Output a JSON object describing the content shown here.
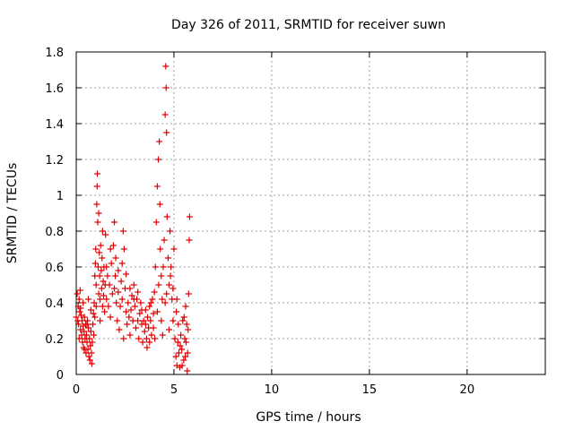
{
  "chart_data": {
    "type": "scatter",
    "title": "Day 326 of 2011, SRMTID for receiver suwn",
    "xlabel": "GPS time / hours",
    "ylabel": "SRMTID / TECUs",
    "xlim": [
      0,
      24
    ],
    "ylim": [
      0,
      1.8
    ],
    "xticks": [
      0,
      5,
      10,
      15,
      20
    ],
    "xtick_labels": [
      "0",
      "5",
      "10",
      "15",
      "20"
    ],
    "yticks": [
      0,
      0.2,
      0.4,
      0.6,
      0.8,
      1.0,
      1.2,
      1.4,
      1.6,
      1.8
    ],
    "ytick_labels": [
      "0",
      "0.2",
      "0.4",
      "0.6",
      "0.8",
      "1",
      "1.2",
      "1.4",
      "1.6",
      "1.8"
    ],
    "grid": true,
    "legend": "none",
    "marker": "plus",
    "color": "#e00000",
    "series": [
      {
        "name": "SRMTID",
        "points": [
          [
            0.0,
            0.32
          ],
          [
            0.05,
            0.45
          ],
          [
            0.08,
            0.3
          ],
          [
            0.1,
            0.38
          ],
          [
            0.12,
            0.28
          ],
          [
            0.15,
            0.42
          ],
          [
            0.18,
            0.35
          ],
          [
            0.2,
            0.47
          ],
          [
            0.22,
            0.25
          ],
          [
            0.25,
            0.33
          ],
          [
            0.28,
            0.22
          ],
          [
            0.3,
            0.3
          ],
          [
            0.32,
            0.18
          ],
          [
            0.35,
            0.27
          ],
          [
            0.38,
            0.15
          ],
          [
            0.4,
            0.24
          ],
          [
            0.42,
            0.32
          ],
          [
            0.45,
            0.2
          ],
          [
            0.48,
            0.28
          ],
          [
            0.5,
            0.12
          ],
          [
            0.52,
            0.22
          ],
          [
            0.55,
            0.18
          ],
          [
            0.58,
            0.3
          ],
          [
            0.6,
            0.14
          ],
          [
            0.62,
            0.26
          ],
          [
            0.65,
            0.1
          ],
          [
            0.68,
            0.2
          ],
          [
            0.7,
            0.08
          ],
          [
            0.72,
            0.16
          ],
          [
            0.75,
            0.24
          ],
          [
            0.78,
            0.12
          ],
          [
            0.8,
            0.06
          ],
          [
            0.82,
            0.18
          ],
          [
            0.85,
            0.28
          ],
          [
            0.88,
            0.34
          ],
          [
            0.9,
            0.22
          ],
          [
            0.92,
            0.4
          ],
          [
            0.95,
            0.55
          ],
          [
            0.98,
            0.62
          ],
          [
            1.0,
            0.7
          ],
          [
            1.02,
            0.5
          ],
          [
            1.05,
            0.95
          ],
          [
            1.07,
            1.05
          ],
          [
            1.08,
            1.12
          ],
          [
            1.1,
            0.85
          ],
          [
            1.12,
            0.6
          ],
          [
            1.15,
            0.45
          ],
          [
            1.18,
            0.68
          ],
          [
            1.2,
            0.55
          ],
          [
            1.22,
            0.42
          ],
          [
            1.25,
            0.72
          ],
          [
            1.28,
            0.58
          ],
          [
            1.3,
            0.48
          ],
          [
            1.32,
            0.65
          ],
          [
            1.35,
            0.38
          ],
          [
            1.38,
            0.52
          ],
          [
            1.4,
            0.44
          ],
          [
            1.42,
            0.6
          ],
          [
            1.45,
            0.35
          ],
          [
            1.48,
            0.5
          ],
          [
            1.5,
            0.78
          ],
          [
            1.55,
            0.42
          ],
          [
            1.6,
            0.55
          ],
          [
            1.65,
            0.38
          ],
          [
            1.7,
            0.5
          ],
          [
            1.75,
            0.32
          ],
          [
            1.8,
            0.62
          ],
          [
            1.85,
            0.45
          ],
          [
            1.9,
            0.72
          ],
          [
            1.95,
            0.85
          ],
          [
            2.0,
            0.55
          ],
          [
            2.05,
            0.4
          ],
          [
            2.1,
            0.3
          ],
          [
            2.15,
            0.46
          ],
          [
            2.2,
            0.25
          ],
          [
            2.25,
            0.38
          ],
          [
            2.3,
            0.52
          ],
          [
            2.35,
            0.62
          ],
          [
            2.4,
            0.8
          ],
          [
            2.45,
            0.7
          ],
          [
            2.5,
            0.48
          ],
          [
            2.55,
            0.35
          ],
          [
            2.6,
            0.28
          ],
          [
            2.65,
            0.4
          ],
          [
            2.7,
            0.32
          ],
          [
            2.75,
            0.22
          ],
          [
            2.8,
            0.36
          ],
          [
            2.85,
            0.44
          ],
          [
            2.9,
            0.3
          ],
          [
            2.95,
            0.5
          ],
          [
            3.0,
            0.38
          ],
          [
            3.05,
            0.26
          ],
          [
            3.1,
            0.42
          ],
          [
            3.15,
            0.3
          ],
          [
            3.2,
            0.2
          ],
          [
            3.25,
            0.34
          ],
          [
            3.3,
            0.4
          ],
          [
            3.35,
            0.28
          ],
          [
            3.4,
            0.18
          ],
          [
            3.45,
            0.3
          ],
          [
            3.5,
            0.24
          ],
          [
            3.55,
            0.36
          ],
          [
            3.6,
            0.2
          ],
          [
            3.65,
            0.32
          ],
          [
            3.7,
            0.26
          ],
          [
            3.75,
            0.38
          ],
          [
            3.8,
            0.3
          ],
          [
            3.85,
            0.22
          ],
          [
            3.9,
            0.42
          ],
          [
            3.95,
            0.34
          ],
          [
            4.0,
            0.46
          ],
          [
            4.05,
            0.6
          ],
          [
            4.1,
            0.85
          ],
          [
            4.15,
            1.05
          ],
          [
            4.2,
            1.2
          ],
          [
            4.25,
            1.3
          ],
          [
            4.28,
            0.95
          ],
          [
            4.3,
            0.7
          ],
          [
            4.35,
            0.55
          ],
          [
            4.4,
            0.42
          ],
          [
            4.45,
            0.6
          ],
          [
            4.5,
            0.75
          ],
          [
            4.55,
            1.45
          ],
          [
            4.58,
            1.72
          ],
          [
            4.6,
            1.6
          ],
          [
            4.62,
            1.35
          ],
          [
            4.65,
            0.88
          ],
          [
            4.7,
            0.65
          ],
          [
            4.75,
            0.5
          ],
          [
            4.8,
            0.8
          ],
          [
            4.85,
            0.6
          ],
          [
            4.9,
            0.42
          ],
          [
            4.95,
            0.3
          ],
          [
            5.0,
            0.7
          ],
          [
            5.05,
            0.2
          ],
          [
            5.1,
            0.1
          ],
          [
            5.15,
            0.05
          ],
          [
            5.2,
            0.18
          ],
          [
            5.25,
            0.12
          ],
          [
            5.3,
            0.04
          ],
          [
            5.35,
            0.22
          ],
          [
            5.4,
            0.14
          ],
          [
            5.45,
            0.3
          ],
          [
            5.5,
            0.08
          ],
          [
            5.55,
            0.2
          ],
          [
            5.6,
            0.38
          ],
          [
            5.65,
            0.28
          ],
          [
            5.7,
            0.12
          ],
          [
            5.75,
            0.45
          ],
          [
            5.8,
            0.88
          ],
          [
            5.78,
            0.75
          ],
          [
            5.72,
            0.25
          ],
          [
            5.68,
            0.02
          ],
          [
            5.62,
            0.18
          ],
          [
            5.58,
            0.1
          ],
          [
            5.52,
            0.32
          ],
          [
            5.42,
            0.05
          ],
          [
            5.32,
            0.16
          ],
          [
            5.22,
            0.28
          ],
          [
            5.12,
            0.35
          ],
          [
            0.15,
            0.2
          ],
          [
            0.35,
            0.4
          ],
          [
            0.55,
            0.28
          ],
          [
            0.75,
            0.36
          ],
          [
            0.95,
            0.32
          ],
          [
            1.15,
            0.9
          ],
          [
            1.35,
            0.8
          ],
          [
            1.55,
            0.6
          ],
          [
            1.75,
            0.7
          ],
          [
            1.95,
            0.48
          ],
          [
            2.15,
            0.58
          ],
          [
            2.35,
            0.42
          ],
          [
            2.55,
            0.56
          ],
          [
            2.75,
            0.48
          ],
          [
            2.95,
            0.42
          ],
          [
            3.15,
            0.46
          ],
          [
            3.35,
            0.36
          ],
          [
            3.55,
            0.28
          ],
          [
            3.75,
            0.18
          ],
          [
            3.95,
            0.26
          ],
          [
            4.15,
            0.35
          ],
          [
            4.35,
            0.3
          ],
          [
            4.55,
            0.4
          ],
          [
            4.75,
            0.25
          ],
          [
            4.95,
            0.48
          ],
          [
            5.15,
            0.42
          ],
          [
            1.02,
            0.38
          ],
          [
            1.22,
            0.3
          ],
          [
            2.02,
            0.65
          ],
          [
            2.42,
            0.2
          ],
          [
            3.62,
            0.15
          ],
          [
            3.82,
            0.4
          ],
          [
            4.02,
            0.2
          ],
          [
            4.22,
            0.5
          ],
          [
            4.42,
            0.22
          ],
          [
            4.62,
            0.45
          ],
          [
            4.82,
            0.55
          ],
          [
            0.62,
            0.42
          ],
          [
            0.42,
            0.14
          ],
          [
            0.22,
            0.37
          ]
        ]
      }
    ]
  }
}
